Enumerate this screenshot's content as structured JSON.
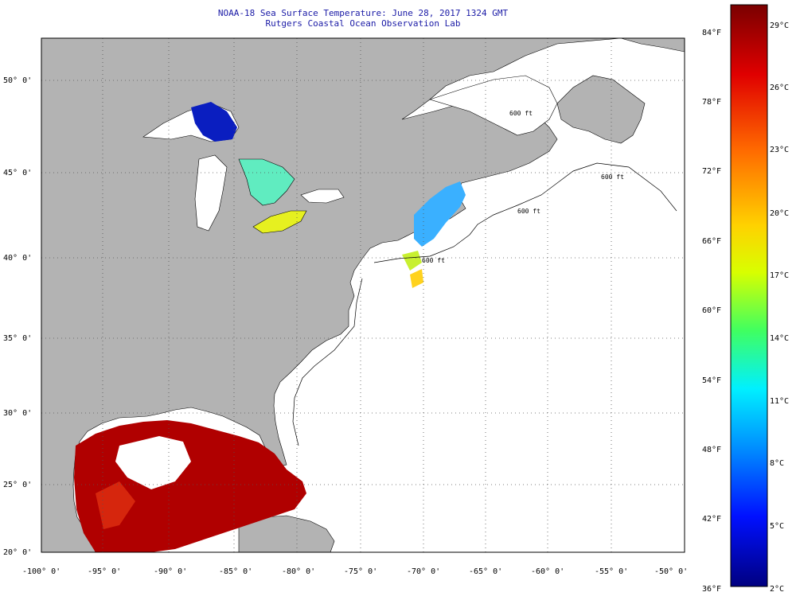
{
  "title": {
    "line1": "NOAA-18 Sea Surface Temperature:  June 28, 2017 1324 GMT",
    "line2": "Rutgers Coastal Ocean Observation Lab"
  },
  "map": {
    "land_color": "#b3b3b3",
    "ocean_color": "#ffffff",
    "lat_labels": [
      "50° 0'",
      "45° 0'",
      "40° 0'",
      "35° 0'",
      "30° 0'",
      "25° 0'",
      "20° 0'"
    ],
    "lon_labels": [
      "-100° 0'",
      "-95° 0'",
      "-90° 0'",
      "-85° 0'",
      "-80° 0'",
      "-75° 0'",
      "-70° 0'",
      "-65° 0'",
      "-60° 0'",
      "-55° 0'",
      "-50° 0'"
    ],
    "isobath_labels": [
      "600 ft",
      "600 ft",
      "600 ft",
      "600 ft"
    ]
  },
  "colorbar": {
    "fahrenheit_labels": [
      "84°F",
      "78°F",
      "72°F",
      "66°F",
      "60°F",
      "54°F",
      "48°F",
      "42°F",
      "36°F"
    ],
    "celsius_labels": [
      "29°C",
      "26°C",
      "23°C",
      "20°C",
      "17°C",
      "14°C",
      "11°C",
      "8°C",
      "5°C",
      "2°C"
    ],
    "gradient_stops": [
      "#8b0000",
      "#ff0000",
      "#ff8c00",
      "#ffff00",
      "#00ffff",
      "#0000ff",
      "#000080"
    ]
  }
}
